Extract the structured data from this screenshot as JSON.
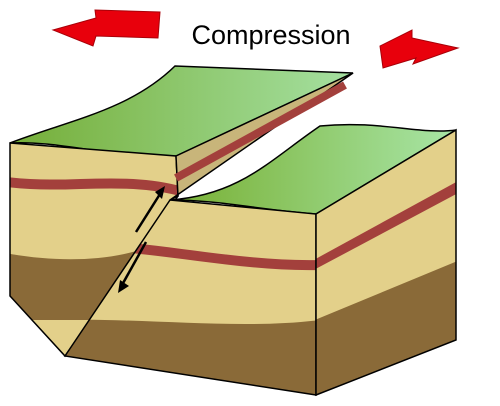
{
  "title": "Compression",
  "colors": {
    "arrow": "#e8000c",
    "arrow_outline": "#a80008",
    "grass_dark": "#7fb33a",
    "grass_light": "#a6e3a3",
    "sand": "#e3d08a",
    "sand_shadow": "#c8b57a",
    "red_layer": "#a3403c",
    "brown_layer": "#8a6a38",
    "outline": "#000000"
  },
  "icons": [
    "compression-arrow-left",
    "compression-arrow-right",
    "motion-arrow-up",
    "motion-arrow-down"
  ]
}
